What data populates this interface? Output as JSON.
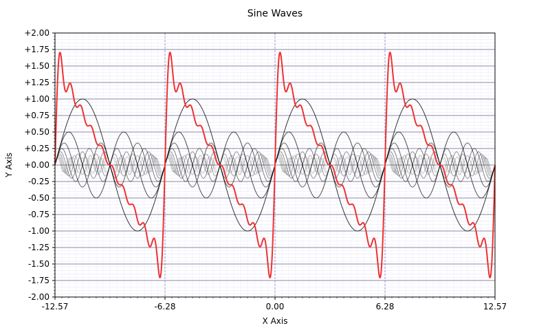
{
  "chart_data": {
    "type": "line",
    "title": "Sine Waves",
    "xlabel": "X Axis",
    "ylabel": "Y Axis",
    "xlim": [
      -12.566,
      12.566
    ],
    "ylim": [
      -2.0,
      2.0
    ],
    "x_ticks": [
      {
        "value": -12.566,
        "label": "-12.57"
      },
      {
        "value": -6.283,
        "label": "-6.28"
      },
      {
        "value": 0.0,
        "label": "0.00"
      },
      {
        "value": 6.283,
        "label": "6.28"
      },
      {
        "value": 12.566,
        "label": "12.57"
      }
    ],
    "y_ticks": [
      {
        "value": 2.0,
        "label": "+2.00"
      },
      {
        "value": 1.75,
        "label": "+1.75"
      },
      {
        "value": 1.5,
        "label": "+1.50"
      },
      {
        "value": 1.25,
        "label": "+1.25"
      },
      {
        "value": 1.0,
        "label": "+1.00"
      },
      {
        "value": 0.75,
        "label": "+0.75"
      },
      {
        "value": 0.5,
        "label": "+0.50"
      },
      {
        "value": 0.25,
        "label": "+0.25"
      },
      {
        "value": 0.0,
        "label": "+0.00"
      },
      {
        "value": -0.25,
        "label": "-0.25"
      },
      {
        "value": -0.5,
        "label": "-0.50"
      },
      {
        "value": -0.75,
        "label": "-0.75"
      },
      {
        "value": -1.0,
        "label": "-1.00"
      },
      {
        "value": -1.25,
        "label": "-1.25"
      },
      {
        "value": -1.5,
        "label": "-1.50"
      },
      {
        "value": -1.75,
        "label": "-1.75"
      },
      {
        "value": -2.0,
        "label": "-2.00"
      }
    ],
    "vertical_reference_lines": [
      -6.283,
      0.0,
      6.283
    ],
    "grid": true,
    "series": [
      {
        "function": "sin(k*x)/k",
        "k": 1,
        "color": "#000000",
        "opacity": 0.8
      },
      {
        "function": "sin(k*x)/k",
        "k": 2,
        "color": "#000000",
        "opacity": 0.7
      },
      {
        "function": "sin(k*x)/k",
        "k": 3,
        "color": "#000000",
        "opacity": 0.6
      },
      {
        "function": "sin(k*x)/k",
        "k": 4,
        "color": "#000000",
        "opacity": 0.5
      },
      {
        "function": "sin(k*x)/k",
        "k": 5,
        "color": "#000000",
        "opacity": 0.42
      },
      {
        "function": "sin(k*x)/k",
        "k": 6,
        "color": "#000000",
        "opacity": 0.34
      },
      {
        "function": "sin(k*x)/k",
        "k": 7,
        "color": "#000000",
        "opacity": 0.27
      },
      {
        "function": "sin(k*x)/k",
        "k": 8,
        "color": "#000000",
        "opacity": 0.22
      },
      {
        "function": "sin(k*x)/k",
        "k": 9,
        "color": "#000000",
        "opacity": 0.18
      },
      {
        "function": "sin(k*x)/k",
        "k": 10,
        "color": "#000000",
        "opacity": 0.15
      },
      {
        "function": "sum of sin(k*x)/k for k=1..10",
        "color": "#f03030",
        "opacity": 1.0
      }
    ]
  }
}
